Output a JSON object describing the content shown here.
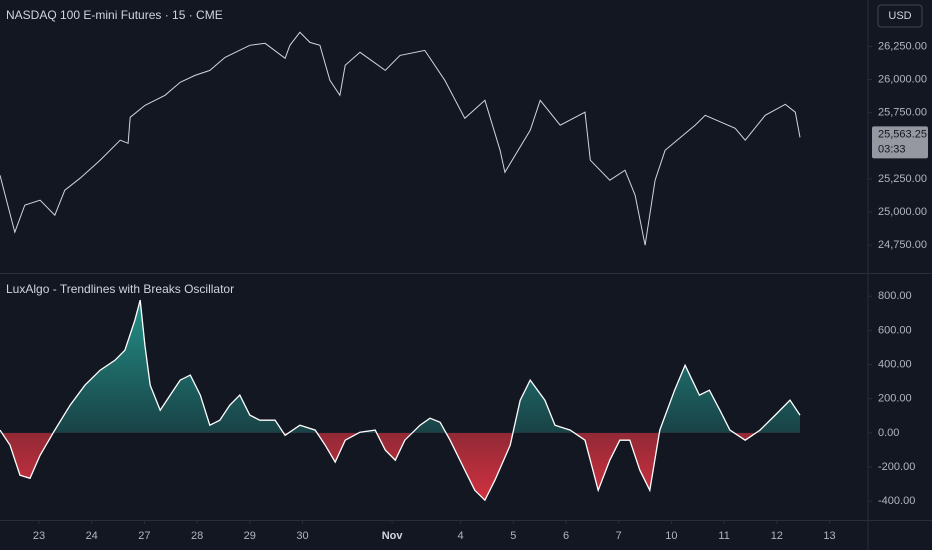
{
  "header": {
    "currency": "USD"
  },
  "chart_data": [
    {
      "type": "line",
      "title": "NASDAQ 100 E-mini Futures · 15 · CME",
      "color": "#d1d4dc",
      "x": [
        -0.74,
        -0.46,
        -0.27,
        0.02,
        0.3,
        0.49,
        0.78,
        1.16,
        1.54,
        1.69,
        1.73,
        2.01,
        2.39,
        2.68,
        2.96,
        3.24,
        3.53,
        4.0,
        4.29,
        4.67,
        4.76,
        4.95,
        5.14,
        5.33,
        5.52,
        5.71,
        5.81,
        6.09,
        6.57,
        6.85,
        7.32,
        7.7,
        8.08,
        8.46,
        8.75,
        8.84,
        9.32,
        9.51,
        9.89,
        10.36,
        10.46,
        10.83,
        11.12,
        11.31,
        11.5,
        11.69,
        11.88,
        12.45,
        12.64,
        13.21,
        13.4,
        13.78,
        14.16,
        14.35,
        14.44
      ],
      "values": [
        25278,
        24848,
        25052,
        25089,
        24976,
        25165,
        25255,
        25391,
        25542,
        25519,
        25715,
        25805,
        25881,
        25979,
        26031,
        26069,
        26167,
        26258,
        26273,
        26160,
        26258,
        26356,
        26280,
        26258,
        25994,
        25881,
        26107,
        26205,
        26069,
        26182,
        26220,
        25994,
        25707,
        25843,
        25466,
        25300,
        25617,
        25843,
        25655,
        25753,
        25391,
        25240,
        25316,
        25127,
        24750,
        25240,
        25466,
        25655,
        25730,
        25632,
        25542,
        25730,
        25813,
        25753,
        25563.25
      ],
      "last_price": {
        "value": 25563.25,
        "label": "25,563.25"
      },
      "countdown": "03:33",
      "xlim": [
        -0.74,
        15.73
      ],
      "ylim": [
        24540,
        26600
      ],
      "yticks": [
        {
          "value": 24750,
          "label": "24,750.00"
        },
        {
          "value": 25000,
          "label": "25,000.00"
        },
        {
          "value": 25250,
          "label": "25,250.00"
        },
        {
          "value": 25750,
          "label": "25,750.00"
        },
        {
          "value": 26000,
          "label": "26,000.00"
        },
        {
          "value": 26250,
          "label": "26,250.00"
        }
      ]
    },
    {
      "type": "area",
      "title": "LuxAlgo - Trendlines with Breaks Oscillator",
      "color": "#ffffff",
      "positive_color": "#26a69a",
      "negative_color": "#f23645",
      "x": [
        -0.74,
        -0.55,
        -0.36,
        -0.17,
        0.02,
        0.3,
        0.59,
        0.87,
        1.16,
        1.44,
        1.63,
        1.82,
        1.92,
        2.01,
        2.11,
        2.3,
        2.49,
        2.68,
        2.87,
        3.06,
        3.24,
        3.43,
        3.62,
        3.81,
        4.0,
        4.19,
        4.48,
        4.67,
        4.95,
        5.24,
        5.43,
        5.62,
        5.81,
        6.09,
        6.38,
        6.57,
        6.76,
        6.94,
        7.23,
        7.42,
        7.61,
        7.8,
        8.08,
        8.27,
        8.46,
        8.65,
        8.94,
        9.13,
        9.32,
        9.6,
        9.79,
        10.08,
        10.36,
        10.61,
        10.83,
        11.02,
        11.21,
        11.4,
        11.59,
        11.78,
        12.06,
        12.26,
        12.53,
        12.72,
        12.92,
        13.11,
        13.4,
        13.68,
        13.97,
        14.25,
        14.44
      ],
      "values": [
        16,
        -72,
        -248,
        -266,
        -131,
        16,
        162,
        279,
        367,
        425,
        484,
        660,
        777,
        513,
        279,
        133,
        221,
        309,
        338,
        221,
        45,
        74,
        162,
        221,
        104,
        74,
        74,
        -14,
        45,
        16,
        -72,
        -171,
        -43,
        4,
        16,
        -101,
        -160,
        -43,
        45,
        86,
        62,
        -43,
        -218,
        -336,
        -394,
        -277,
        -72,
        191,
        309,
        191,
        45,
        16,
        -43,
        -336,
        -160,
        -43,
        -43,
        -218,
        -336,
        16,
        250,
        396,
        221,
        250,
        133,
        16,
        -43,
        16,
        104,
        191,
        104
      ],
      "xlim": [
        -0.74,
        15.73
      ],
      "ylim": [
        -510,
        930
      ],
      "yticks": [
        {
          "value": -400,
          "label": "-400.00"
        },
        {
          "value": -200,
          "label": "-200.00"
        },
        {
          "value": 0,
          "label": "0.00"
        },
        {
          "value": 200,
          "label": "200.00"
        },
        {
          "value": 400,
          "label": "400.00"
        },
        {
          "value": 600,
          "label": "600.00"
        },
        {
          "value": 800,
          "label": "800.00"
        }
      ],
      "xticks": [
        {
          "value": 0,
          "label": "23"
        },
        {
          "value": 1,
          "label": "24"
        },
        {
          "value": 2,
          "label": "27"
        },
        {
          "value": 3,
          "label": "28"
        },
        {
          "value": 4,
          "label": "29"
        },
        {
          "value": 5,
          "label": "30"
        },
        {
          "value": 6.7,
          "label": "Nov"
        },
        {
          "value": 8,
          "label": "4"
        },
        {
          "value": 9,
          "label": "5"
        },
        {
          "value": 10,
          "label": "6"
        },
        {
          "value": 11,
          "label": "7"
        },
        {
          "value": 12,
          "label": "10"
        },
        {
          "value": 13,
          "label": "11"
        },
        {
          "value": 14,
          "label": "12"
        },
        {
          "value": 15,
          "label": "13"
        }
      ]
    }
  ]
}
